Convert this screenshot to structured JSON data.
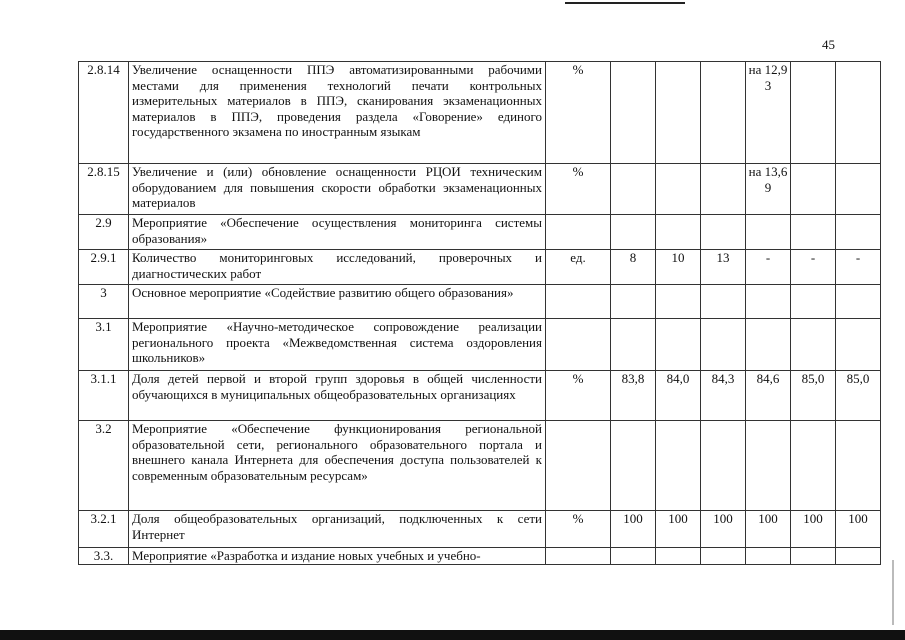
{
  "page_number": "45",
  "rows": [
    {
      "num": "2.8.14",
      "text": "Увеличение оснащенности ППЭ автоматизированными рабочими местами для применения технологий печати контрольных измерительных материалов в ППЭ, сканирования экзаменационных материалов в ППЭ, проведения раздела «Говорение» единого государственного экзамена по иностранным языкам",
      "unit": "%",
      "values": [
        "",
        "",
        "",
        "на 12,93",
        "",
        ""
      ]
    },
    {
      "num": "2.8.15",
      "text": "Увеличение и (или) обновление оснащенности РЦОИ техническим оборудованием для повышения скорости обработки экзаменационных материалов",
      "unit": "%",
      "values": [
        "",
        "",
        "",
        "на 13,69",
        "",
        ""
      ]
    },
    {
      "num": "2.9",
      "text": "Мероприятие «Обеспечение осуществления мониторинга системы образования»",
      "unit": "",
      "values": [
        "",
        "",
        "",
        "",
        "",
        ""
      ]
    },
    {
      "num": "2.9.1",
      "text": "Количество мониторинговых исследований, проверочных и диагностических работ",
      "unit": "ед.",
      "values": [
        "8",
        "10",
        "13",
        "-",
        "-",
        "-"
      ]
    },
    {
      "num": "3",
      "text": "Основное мероприятие «Содействие развитию общего образования»",
      "unit": "",
      "values": [
        "",
        "",
        "",
        "",
        "",
        ""
      ]
    },
    {
      "num": "3.1",
      "text": "Мероприятие «Научно-методическое сопровождение реализации регионального проекта «Межведомственная система оздоровления школьников»",
      "unit": "",
      "values": [
        "",
        "",
        "",
        "",
        "",
        ""
      ]
    },
    {
      "num": "3.1.1",
      "text": "Доля детей первой и второй групп здоровья в общей численности обучающихся в муниципальных общеобразовательных организациях",
      "unit": "%",
      "values": [
        "83,8",
        "84,0",
        "84,3",
        "84,6",
        "85,0",
        "85,0"
      ]
    },
    {
      "num": "3.2",
      "text": "Мероприятие «Обеспечение функционирования региональной образовательной сети, регионального образовательного портала и внешнего канала Интернета для обеспечения доступа пользователей к современным образовательным ресурсам»",
      "unit": "",
      "values": [
        "",
        "",
        "",
        "",
        "",
        ""
      ]
    },
    {
      "num": "3.2.1",
      "text": "Доля общеобразовательных организаций, подключенных к сети Интернет",
      "unit": "%",
      "values": [
        "100",
        "100",
        "100",
        "100",
        "100",
        "100"
      ]
    },
    {
      "num": "3.3.",
      "text": "Мероприятие «Разработка и издание новых учебных и учебно-",
      "unit": "",
      "values": [
        "",
        "",
        "",
        "",
        "",
        ""
      ]
    }
  ]
}
